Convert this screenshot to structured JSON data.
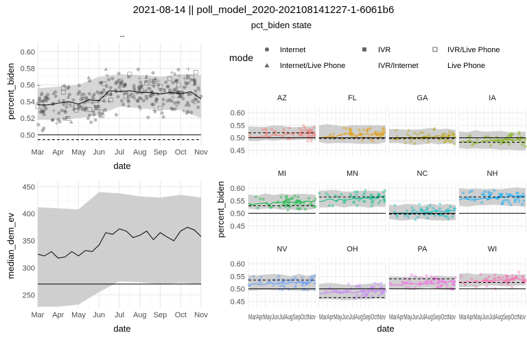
{
  "figure": {
    "title": "2021-08-14 || poll_model_2020-202108141227-1-6061b6",
    "subtitle": "pct_biden state",
    "top_left_tag": "--"
  },
  "legend": {
    "title": "mode",
    "items": [
      {
        "label": "Internet",
        "shape": "circle"
      },
      {
        "label": "IVR",
        "shape": "square"
      },
      {
        "label": "IVR/Live Phone",
        "shape": "square-x"
      },
      {
        "label": "Internet/Live Phone",
        "shape": "triangle"
      },
      {
        "label": "IVR/Internet",
        "shape": "none"
      },
      {
        "label": "Live Phone",
        "shape": "none"
      }
    ]
  },
  "colors": {
    "band": "#cfcfcf",
    "grid_major": "#e6e6e6",
    "grid_minor": "#f2f2f2",
    "axis_text": "#4d4d4d",
    "states": {
      "AZ": "#f8766d",
      "FL": "#e69a00",
      "GA": "#b79f00",
      "IA": "#7cae00",
      "MI": "#00ba38",
      "MN": "#00c08b",
      "NC": "#00bfc4",
      "NH": "#00a9ff",
      "NV": "#619cff",
      "OH": "#c77cff",
      "PA": "#f564e3",
      "WI": "#ff64b0"
    }
  },
  "chart_data": [
    {
      "type": "scatter",
      "id": "national-pct",
      "xlabel": "date",
      "ylabel": "percent_biden",
      "x_ticks": [
        "Mar",
        "Apr",
        "May",
        "Jun",
        "Jul",
        "Aug",
        "Sep",
        "Oct",
        "Nov"
      ],
      "y_ticks": [
        "0.50",
        "0.52",
        "0.54",
        "0.56",
        "0.58",
        "0.60"
      ],
      "ylim": [
        0.487,
        0.611
      ],
      "reference_lines": {
        "solid": 0.5,
        "dashed": 0.494
      },
      "trend": {
        "x": [
          "Mar",
          "Mar 15",
          "Apr",
          "Apr 15",
          "May",
          "May 15",
          "Jun",
          "Jun 15",
          "Jul",
          "Jul 15",
          "Aug",
          "Aug 15",
          "Sep",
          "Sep 15",
          "Oct",
          "Oct 15",
          "Nov"
        ],
        "y": [
          0.536,
          0.536,
          0.538,
          0.54,
          0.537,
          0.542,
          0.541,
          0.553,
          0.552,
          0.553,
          0.551,
          0.551,
          0.549,
          0.551,
          0.549,
          0.552,
          0.543
        ]
      },
      "band": {
        "x": [
          "Mar",
          "Apr",
          "May",
          "Jun",
          "Jul",
          "Aug",
          "Sep",
          "Oct",
          "Nov"
        ],
        "lower": [
          0.518,
          0.518,
          0.52,
          0.524,
          0.534,
          0.532,
          0.53,
          0.53,
          0.52
        ],
        "upper": [
          0.556,
          0.558,
          0.56,
          0.57,
          0.573,
          0.572,
          0.57,
          0.573,
          0.572
        ]
      }
    },
    {
      "type": "line",
      "id": "median-ev",
      "xlabel": "date",
      "ylabel": "median_dem_ev",
      "x_ticks": [
        "Mar",
        "Apr",
        "May",
        "Jun",
        "Jul",
        "Aug",
        "Sep",
        "Oct",
        "Nov"
      ],
      "y_ticks": [
        "250",
        "300",
        "350",
        "400",
        "450"
      ],
      "ylim": [
        225,
        460
      ],
      "reference_line": 270,
      "line": {
        "x": [
          "Mar",
          "Mar 10",
          "Mar 20",
          "Apr",
          "Apr 10",
          "Apr 20",
          "May",
          "May 10",
          "May 20",
          "Jun",
          "Jun 10",
          "Jun 20",
          "Jul",
          "Jul 10",
          "Jul 20",
          "Aug",
          "Aug 10",
          "Aug 20",
          "Sep",
          "Sep 10",
          "Sep 20",
          "Oct",
          "Oct 10",
          "Oct 20",
          "Nov"
        ],
        "y": [
          325,
          322,
          330,
          318,
          320,
          330,
          322,
          332,
          330,
          342,
          365,
          362,
          372,
          368,
          356,
          360,
          368,
          352,
          365,
          357,
          350,
          368,
          375,
          370,
          358
        ]
      },
      "band": {
        "x": [
          "Mar",
          "Apr",
          "May",
          "Jun",
          "Jul",
          "Aug",
          "Sep",
          "Oct",
          "Nov"
        ],
        "lower": [
          228,
          228,
          232,
          255,
          275,
          273,
          270,
          272,
          270
        ],
        "upper": [
          412,
          410,
          408,
          440,
          438,
          432,
          430,
          435,
          430
        ]
      }
    },
    {
      "type": "scatter",
      "id": "state-facets",
      "xlabel": "date",
      "ylabel": "percent_biden",
      "x_tick_labels": "MarAprMayJunJulAugSepOctNov",
      "y_ticks": [
        "0.45",
        "0.50",
        "0.55",
        "0.60"
      ],
      "ylim": [
        0.425,
        0.625
      ],
      "panels": [
        {
          "state": "AZ",
          "trend": 0.515,
          "dashed": 0.52,
          "lo": 0.49,
          "hi": 0.545
        },
        {
          "state": "FL",
          "trend": 0.515,
          "dashed": 0.497,
          "lo": 0.48,
          "hi": 0.55
        },
        {
          "state": "GA",
          "trend": 0.505,
          "dashed": 0.497,
          "lo": 0.475,
          "hi": 0.535
        },
        {
          "state": "IA",
          "trend": 0.49,
          "dashed": 0.482,
          "lo": 0.455,
          "hi": 0.525
        },
        {
          "state": "MI",
          "trend": 0.545,
          "dashed": 0.53,
          "lo": 0.515,
          "hi": 0.575
        },
        {
          "state": "MN",
          "trend": 0.56,
          "dashed": 0.565,
          "lo": 0.525,
          "hi": 0.59
        },
        {
          "state": "NC",
          "trend": 0.505,
          "dashed": 0.497,
          "lo": 0.475,
          "hi": 0.535
        },
        {
          "state": "NH",
          "trend": 0.565,
          "dashed": 0.565,
          "lo": 0.53,
          "hi": 0.6
        },
        {
          "state": "NV",
          "trend": 0.525,
          "dashed": 0.535,
          "lo": 0.495,
          "hi": 0.555
        },
        {
          "state": "OH",
          "trend": 0.49,
          "dashed": 0.465,
          "lo": 0.46,
          "hi": 0.52
        },
        {
          "state": "PA",
          "trend": 0.525,
          "dashed": 0.54,
          "lo": 0.5,
          "hi": 0.55
        },
        {
          "state": "WI",
          "trend": 0.535,
          "dashed": 0.525,
          "lo": 0.51,
          "hi": 0.56
        }
      ]
    }
  ]
}
